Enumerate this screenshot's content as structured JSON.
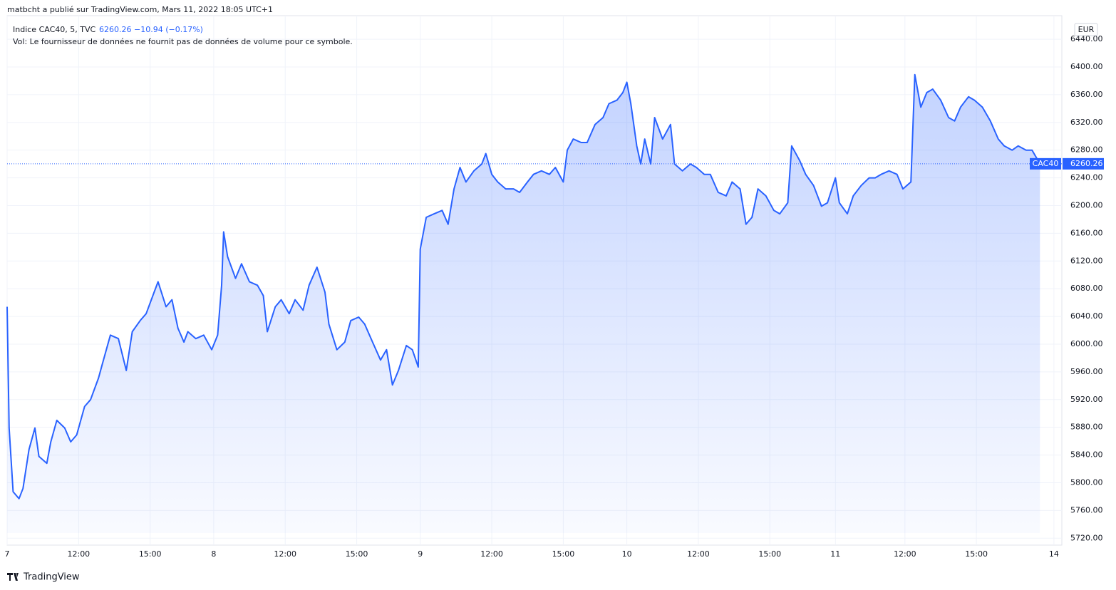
{
  "header": "matbcht a publié sur TradingView.com, Mars 11, 2022 18:05 UTC+1",
  "footer": "TradingView",
  "chart_data": {
    "type": "area",
    "symbol": "Indice CAC40, 5, TVC",
    "last": 6260.26,
    "change": "−10.94 (−0.17%)",
    "volume_note": "Vol: Le fournisseur de données ne fournit pas de données de volume pour ce symbole.",
    "currency": "EUR",
    "series_label": "CAC40",
    "color": "#2962ff",
    "grid": true,
    "xlim": [
      0,
      531
    ],
    "ylim": [
      5710,
      6474
    ],
    "xticks": [
      {
        "value": 0,
        "label": "7"
      },
      {
        "value": 36,
        "label": "12:00"
      },
      {
        "value": 72,
        "label": "15:00"
      },
      {
        "value": 104,
        "label": "8"
      },
      {
        "value": 140,
        "label": "12:00"
      },
      {
        "value": 176,
        "label": "15:00"
      },
      {
        "value": 208,
        "label": "9"
      },
      {
        "value": 244,
        "label": "12:00"
      },
      {
        "value": 280,
        "label": "15:00"
      },
      {
        "value": 312,
        "label": "10"
      },
      {
        "value": 348,
        "label": "12:00"
      },
      {
        "value": 384,
        "label": "15:00"
      },
      {
        "value": 417,
        "label": "11"
      },
      {
        "value": 452,
        "label": "12:00"
      },
      {
        "value": 488,
        "label": "15:00"
      },
      {
        "value": 527,
        "label": "14"
      }
    ],
    "yticks": [
      {
        "value": 5720,
        "label": "5720.00"
      },
      {
        "value": 5760,
        "label": "5760.00"
      },
      {
        "value": 5800,
        "label": "5800.00"
      },
      {
        "value": 5840,
        "label": "5840.00"
      },
      {
        "value": 5880,
        "label": "5880.00"
      },
      {
        "value": 5920,
        "label": "5920.00"
      },
      {
        "value": 5960,
        "label": "5960.00"
      },
      {
        "value": 6000,
        "label": "6000.00"
      },
      {
        "value": 6040,
        "label": "6040.00"
      },
      {
        "value": 6080,
        "label": "6080.00"
      },
      {
        "value": 6120,
        "label": "6120.00"
      },
      {
        "value": 6160,
        "label": "6160.00"
      },
      {
        "value": 6200,
        "label": "6200.00"
      },
      {
        "value": 6240,
        "label": "6240.00"
      },
      {
        "value": 6280,
        "label": "6280.00"
      },
      {
        "value": 6320,
        "label": "6320.00"
      },
      {
        "value": 6360,
        "label": "6360.00"
      },
      {
        "value": 6400,
        "label": "6400.00"
      },
      {
        "value": 6440,
        "label": "6440.00"
      }
    ],
    "x": [
      0,
      1,
      3,
      6,
      8,
      11,
      14,
      16,
      20,
      22,
      25,
      29,
      32,
      35,
      39,
      42,
      46,
      48,
      52,
      56,
      60,
      63,
      67,
      70,
      74,
      76,
      80,
      83,
      86,
      89,
      91,
      95,
      99,
      103,
      106,
      108,
      109,
      111,
      115,
      118,
      122,
      126,
      129,
      131,
      135,
      138,
      142,
      145,
      149,
      152,
      156,
      160,
      162,
      166,
      170,
      173,
      177,
      180,
      184,
      188,
      191,
      194,
      197,
      201,
      204,
      207,
      208,
      211,
      215,
      219,
      222,
      225,
      228,
      231,
      235,
      239,
      241,
      244,
      247,
      251,
      255,
      258,
      262,
      265,
      269,
      273,
      276,
      280,
      282,
      285,
      289,
      292,
      296,
      300,
      303,
      307,
      310,
      312,
      314,
      317,
      319,
      321,
      324,
      326,
      330,
      334,
      336,
      340,
      344,
      347,
      351,
      354,
      358,
      362,
      365,
      369,
      372,
      375,
      378,
      382,
      386,
      389,
      393,
      395,
      399,
      402,
      406,
      410,
      413,
      417,
      419,
      423,
      426,
      430,
      434,
      437,
      440,
      444,
      448,
      451,
      455,
      457,
      460,
      463,
      466,
      470,
      474,
      477,
      480,
      484,
      487,
      491,
      495,
      499,
      502,
      506,
      509,
      513,
      516,
      520
    ],
    "values": [
      6054,
      5879,
      5787,
      5777,
      5792,
      5848,
      5879,
      5838,
      5828,
      5859,
      5890,
      5879,
      5859,
      5869,
      5910,
      5920,
      5951,
      5972,
      6013,
      6008,
      5962,
      6018,
      6034,
      6044,
      6075,
      6090,
      6054,
      6064,
      6023,
      6003,
      6018,
      6008,
      6013,
      5992,
      6013,
      6085,
      6162,
      6126,
      6095,
      6116,
      6090,
      6085,
      6070,
      6018,
      6054,
      6064,
      6044,
      6064,
      6049,
      6085,
      6111,
      6075,
      6029,
      5992,
      6003,
      6034,
      6039,
      6029,
      6003,
      5977,
      5992,
      5941,
      5962,
      5998,
      5992,
      5967,
      6137,
      6183,
      6188,
      6193,
      6173,
      6224,
      6255,
      6234,
      6250,
      6260,
      6275,
      6245,
      6234,
      6224,
      6224,
      6219,
      6234,
      6245,
      6250,
      6245,
      6255,
      6234,
      6280,
      6296,
      6291,
      6291,
      6317,
      6327,
      6347,
      6352,
      6363,
      6378,
      6347,
      6286,
      6260,
      6296,
      6260,
      6327,
      6296,
      6317,
      6260,
      6250,
      6260,
      6255,
      6245,
      6245,
      6219,
      6214,
      6234,
      6224,
      6173,
      6183,
      6224,
      6214,
      6193,
      6188,
      6204,
      6286,
      6265,
      6245,
      6229,
      6199,
      6204,
      6240,
      6204,
      6188,
      6214,
      6229,
      6240,
      6240,
      6245,
      6250,
      6245,
      6224,
      6234,
      6389,
      6342,
      6363,
      6368,
      6352,
      6327,
      6322,
      6342,
      6357,
      6352,
      6342,
      6322,
      6296,
      6286,
      6280,
      6286,
      6280,
      6280,
      6260.26
    ]
  }
}
